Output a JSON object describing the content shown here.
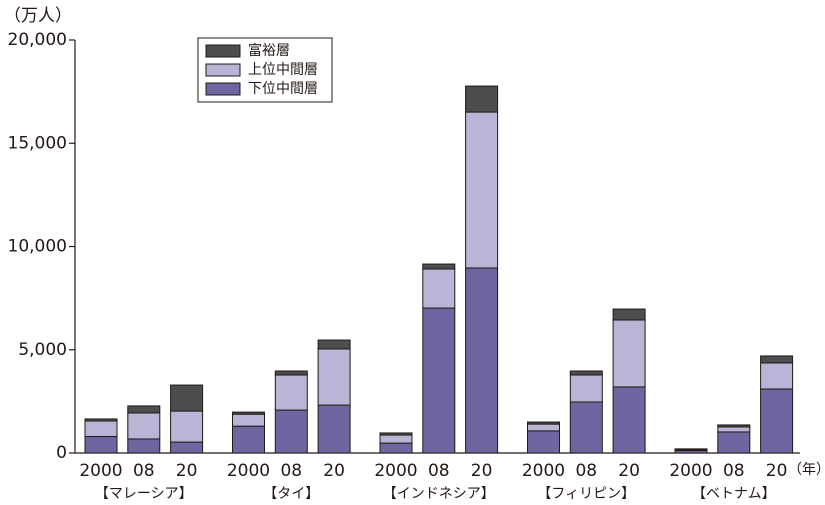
{
  "chart_data": {
    "type": "stacked-bar",
    "y_unit": "（万人）",
    "x_unit": "（年）",
    "categories": [
      "2000",
      "08",
      "20",
      "2000",
      "08",
      "20",
      "2000",
      "08",
      "20",
      "2000",
      "08",
      "20",
      "2000",
      "08",
      "20"
    ],
    "groups": [
      "【マレーシア】",
      "【タイ】",
      "【インドネシア】",
      "【フィリピン】",
      "【ベトナム】"
    ],
    "series": [
      {
        "name": "下位中間層",
        "color": "#6e66a0",
        "values": [
          800,
          680,
          530,
          1300,
          2080,
          2320,
          480,
          7020,
          8960,
          1070,
          2470,
          3200,
          120,
          1020,
          3100
        ]
      },
      {
        "name": "上位中間層",
        "color": "#b8b5d6",
        "values": [
          750,
          1260,
          1500,
          580,
          1700,
          2720,
          390,
          1890,
          7550,
          330,
          1310,
          3240,
          30,
          240,
          1260
        ]
      },
      {
        "name": "富裕層",
        "color": "#4d4d4d",
        "values": [
          100,
          340,
          1260,
          100,
          190,
          430,
          100,
          240,
          1260,
          100,
          190,
          530,
          50,
          100,
          340
        ]
      }
    ],
    "ylim": [
      0,
      20000
    ],
    "yticks": [
      0,
      {
        "value": 5000,
        "label": "5,000"
      },
      {
        "value": 10000,
        "label": "10,000"
      },
      {
        "value": 15000,
        "label": "15,000"
      },
      {
        "value": 20000,
        "label": "20,000"
      }
    ]
  }
}
